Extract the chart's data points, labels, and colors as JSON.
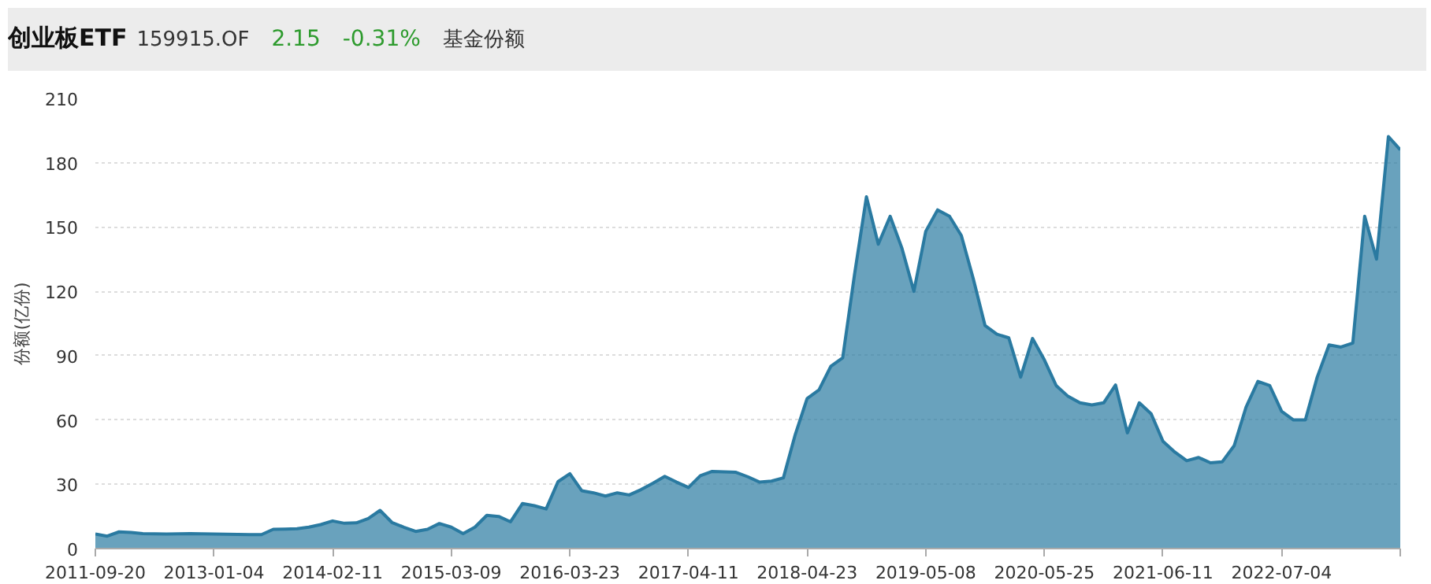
{
  "chart_data": {
    "type": "area",
    "title": "创业板ETF",
    "subtitle": "159915.OF",
    "annotations": [
      "2.15",
      "-0.31%",
      "基金份额"
    ],
    "ylabel": "份额(亿份)",
    "categories": [
      "2011-09-20",
      null,
      null,
      null,
      null,
      null,
      null,
      null,
      null,
      null,
      "2013-01-04",
      null,
      null,
      null,
      null,
      null,
      null,
      null,
      null,
      null,
      "2014-02-11",
      null,
      null,
      null,
      null,
      null,
      null,
      null,
      null,
      null,
      "2015-03-09",
      null,
      null,
      null,
      null,
      null,
      null,
      null,
      null,
      null,
      "2016-03-23",
      null,
      null,
      null,
      null,
      null,
      null,
      null,
      null,
      null,
      "2017-04-11",
      null,
      null,
      null,
      null,
      null,
      null,
      null,
      null,
      null,
      "2018-04-23",
      null,
      null,
      null,
      null,
      null,
      null,
      null,
      null,
      null,
      "2019-05-08",
      null,
      null,
      null,
      null,
      null,
      null,
      null,
      null,
      null,
      "2020-05-25",
      null,
      null,
      null,
      null,
      null,
      null,
      null,
      null,
      null,
      "2021-06-11",
      null,
      null,
      null,
      null,
      null,
      null,
      null,
      null,
      null,
      "2022-07-04",
      null,
      null,
      null,
      null,
      null,
      null,
      null,
      null,
      null,
      null
    ],
    "series": [
      {
        "color": "#2a7aa1",
        "values": [
          6.8,
          5.8,
          7.8,
          7.5,
          7,
          6.9,
          6.8,
          6.9,
          7,
          6.9,
          6.8,
          6.7,
          6.6,
          6.5,
          6.5,
          9,
          9.1,
          9.3,
          10,
          11.2,
          12.9,
          11.8,
          12,
          14,
          17.8,
          12.2,
          10,
          8,
          9,
          11.7,
          10,
          7,
          10,
          15.5,
          15,
          12.5,
          21,
          20,
          18.5,
          31.2,
          34.9,
          27,
          26,
          24.5,
          26,
          25,
          27.5,
          30.5,
          33.7,
          31,
          28.5,
          34,
          36,
          35.8,
          35.6,
          33.5,
          31,
          31.5,
          33,
          53.2,
          70,
          74,
          85,
          89,
          128,
          164.1,
          142,
          155,
          140,
          120,
          148,
          158,
          155,
          146,
          126,
          104,
          100,
          98.3,
          80,
          98,
          88,
          76,
          71,
          68,
          67,
          68,
          76.3,
          54,
          68,
          62.9,
          50,
          45,
          41,
          42.5,
          40,
          40.5,
          48,
          66,
          78,
          76,
          64,
          60,
          60,
          80,
          95,
          94,
          95.9,
          155,
          135,
          192.2,
          186
        ]
      }
    ],
    "ylim": [
      0,
      210
    ],
    "yticks": [
      0,
      30,
      60,
      90,
      120,
      150,
      180,
      210
    ],
    "grid": "y",
    "marker": "none",
    "line_style": "solid"
  }
}
